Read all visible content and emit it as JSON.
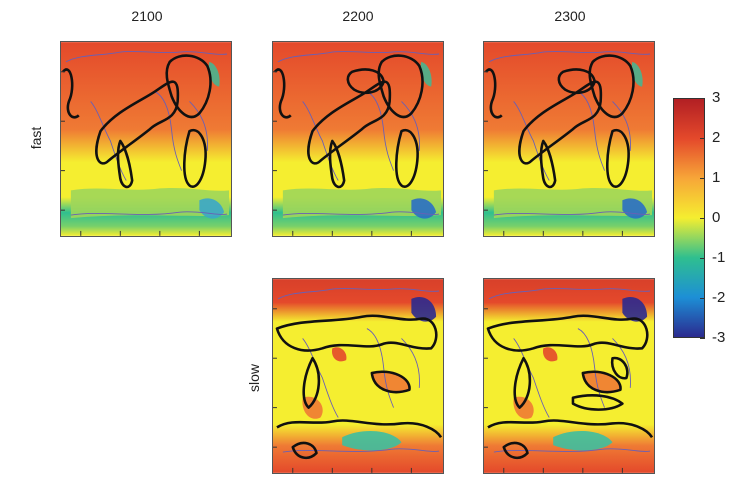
{
  "chart_data": {
    "type": "heatmap",
    "columns": [
      "2100",
      "2200",
      "2300"
    ],
    "rows": [
      "fast",
      "slow"
    ],
    "panels": [
      {
        "row": "fast",
        "column": "2100",
        "present": true
      },
      {
        "row": "fast",
        "column": "2200",
        "present": true
      },
      {
        "row": "fast",
        "column": "2300",
        "present": true
      },
      {
        "row": "slow",
        "column": "2100",
        "present": false
      },
      {
        "row": "slow",
        "column": "2200",
        "present": true
      },
      {
        "row": "slow",
        "column": "2300",
        "present": true
      }
    ],
    "colorbar": {
      "min": -3,
      "max": 3,
      "ticks": [
        "3",
        "2",
        "1",
        "0",
        "-1",
        "-2",
        "-3"
      ],
      "colors": [
        "#2b2a8f",
        "#1d8fd6",
        "#2fbf8f",
        "#f5ee30",
        "#f7a638",
        "#e4492b",
        "#b21f24"
      ]
    },
    "colors": {
      "map_high": "#e4492b",
      "map_mid": "#f5ee30",
      "map_low": "#2fbf8f",
      "map_min": "#2b2a8f",
      "contour": "#111111",
      "coastline": "#6a5fb5"
    }
  }
}
